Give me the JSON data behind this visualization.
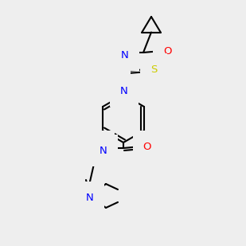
{
  "bg_color": "#eeeeee",
  "atom_colors": {
    "N": "#0000ff",
    "O": "#ff0000",
    "S": "#cccc00",
    "H": "#4a9090"
  },
  "bond_color": "#000000",
  "lw": 1.5,
  "fs": 9.5
}
